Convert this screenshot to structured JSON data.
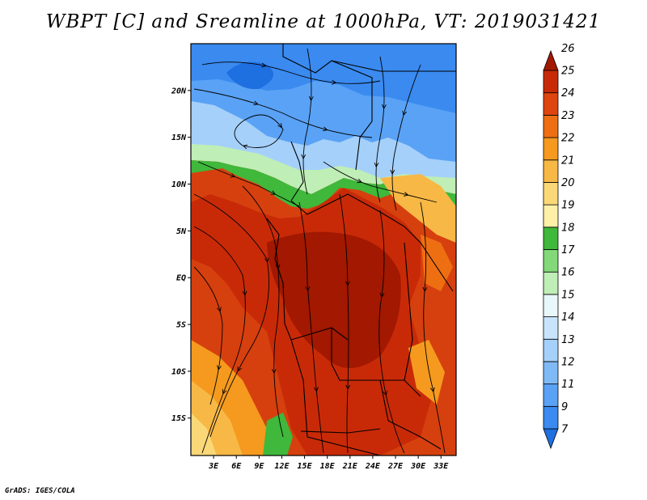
{
  "title": "WBPT [C] and Sreamline at 1000hPa, VT: 2019031421",
  "footer": "GrADS: IGES/COLA",
  "map": {
    "lat_range": [
      -19,
      25
    ],
    "lon_range": [
      0,
      35
    ],
    "lat_labels": [
      {
        "value": 20,
        "text": "20N"
      },
      {
        "value": 15,
        "text": "15N"
      },
      {
        "value": 10,
        "text": "10N"
      },
      {
        "value": 5,
        "text": "5N"
      },
      {
        "value": 0,
        "text": "EQ"
      },
      {
        "value": -5,
        "text": "5S"
      },
      {
        "value": -10,
        "text": "10S"
      },
      {
        "value": -15,
        "text": "15S"
      }
    ],
    "lon_labels": [
      {
        "value": 3,
        "text": "3E"
      },
      {
        "value": 6,
        "text": "6E"
      },
      {
        "value": 9,
        "text": "9E"
      },
      {
        "value": 12,
        "text": "12E"
      },
      {
        "value": 15,
        "text": "15E"
      },
      {
        "value": 18,
        "text": "18E"
      },
      {
        "value": 21,
        "text": "21E"
      },
      {
        "value": 24,
        "text": "24E"
      },
      {
        "value": 27,
        "text": "27E"
      },
      {
        "value": 30,
        "text": "30E"
      },
      {
        "value": 33,
        "text": "33E"
      }
    ]
  },
  "colorbar": {
    "levels": [
      "7",
      "9",
      "11",
      "12",
      "13",
      "14",
      "15",
      "16",
      "17",
      "18",
      "19",
      "20",
      "21",
      "22",
      "23",
      "24",
      "25",
      "26"
    ],
    "colors": [
      "#1e6fe0",
      "#3a8af0",
      "#5aa2f5",
      "#7fbaf7",
      "#a5d0fa",
      "#c8e4fc",
      "#e8f7fa",
      "#bfeeb6",
      "#83d97a",
      "#3fb83b",
      "#fff0a8",
      "#fad878",
      "#f7b846",
      "#f59a1e",
      "#ee6f12",
      "#df4510",
      "#c82a08",
      "#a21800"
    ]
  }
}
